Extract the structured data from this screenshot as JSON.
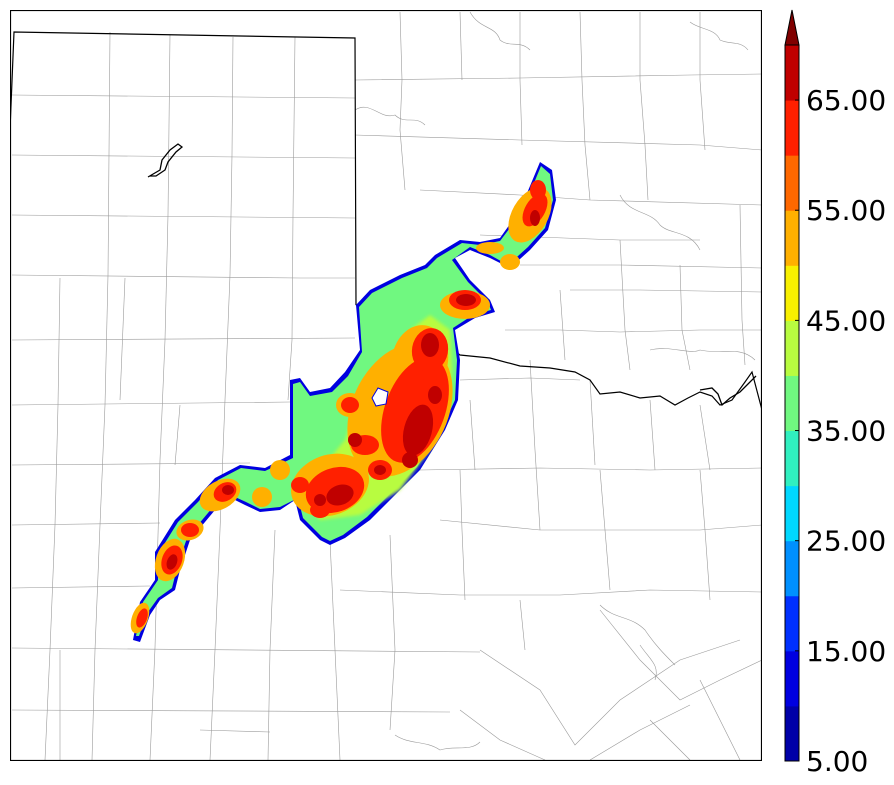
{
  "colorbar": {
    "levels": [
      5,
      10,
      15,
      20,
      25,
      30,
      35,
      40,
      45,
      50,
      55,
      60,
      65,
      70
    ],
    "colors": [
      "#0000a8",
      "#0000e0",
      "#0030ff",
      "#0090ff",
      "#00d8ff",
      "#30f0c0",
      "#70f880",
      "#b8fc40",
      "#f8f000",
      "#ffb000",
      "#ff6800",
      "#ff2000",
      "#c00000"
    ],
    "extend_color": "#800000",
    "extend": "max",
    "tick_labels": [
      "65.00",
      "55.00",
      "45.00",
      "35.00",
      "25.00",
      "15.00",
      "5.00"
    ]
  },
  "map": {
    "border_color": "#000000",
    "county_line_color": "#9a9a9a",
    "background": "#ffffff"
  }
}
